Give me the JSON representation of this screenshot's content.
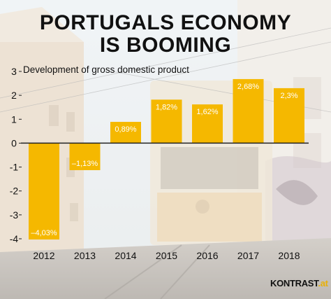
{
  "title": {
    "line1": "PORTUGALS  ECONOMY",
    "line2": "IS BOOMING"
  },
  "logo": {
    "text": "KONTRAST",
    "suffix": ".at"
  },
  "colors": {
    "bar": "#F5B800",
    "text": "#111111",
    "axis": "#222222"
  },
  "chart_data": {
    "type": "bar",
    "title": "",
    "subtitle": "Development of gross domestic product",
    "xlabel": "",
    "ylabel": "",
    "categories": [
      "2012",
      "2013",
      "2014",
      "2015",
      "2016",
      "2017",
      "2018"
    ],
    "values": [
      -4.03,
      -1.13,
      0.89,
      1.82,
      1.62,
      2.68,
      2.3
    ],
    "data_labels": [
      "–4,03%",
      "–1,13%",
      "0,89%",
      "1,82%",
      "1,62%",
      "2,68%",
      "2,3%"
    ],
    "y_ticks": [
      "3",
      "2",
      "1",
      "0",
      "-1",
      "-2",
      "-3",
      "-4"
    ],
    "y_tick_values": [
      3,
      2,
      1,
      0,
      -1,
      -2,
      -3,
      -4
    ],
    "ylim": [
      -4,
      3
    ],
    "grid": false,
    "legend": "none"
  }
}
